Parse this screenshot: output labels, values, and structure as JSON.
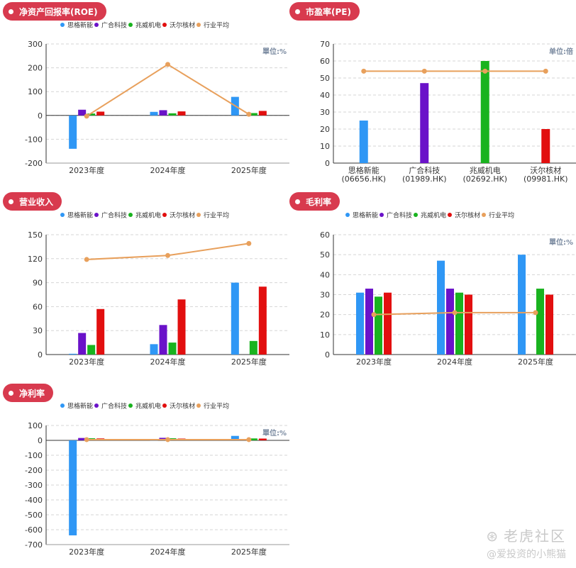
{
  "colors": {
    "series": [
      "#2f97f5",
      "#6a12c9",
      "#19b31f",
      "#e20f0f",
      "#e8a05c"
    ],
    "pill": "#d83a4e",
    "axis": "#333333",
    "grid": "#d5d5d5"
  },
  "legend_names": [
    "思格新能",
    "广合科技",
    "兆威机电",
    "沃尔核材",
    "行业平均"
  ],
  "years": [
    "2023年度",
    "2024年度",
    "2025年度"
  ],
  "watermark": {
    "brand": "老虎社区",
    "author": "@爱投资的小熊猫"
  },
  "chart_data": [
    {
      "title": "净资产回报率(ROE)",
      "type": "bar",
      "unit_label": "單位:%",
      "categories": [
        "2023年度",
        "2024年度",
        "2025年度"
      ],
      "ylim": [
        -200,
        300
      ],
      "yticks": [
        -200,
        -100,
        0,
        100,
        200,
        300
      ],
      "series": [
        {
          "name": "思格新能",
          "values": [
            -140,
            15,
            78
          ]
        },
        {
          "name": "广合科技",
          "values": [
            24,
            22,
            null
          ]
        },
        {
          "name": "兆威机电",
          "values": [
            8,
            9,
            10
          ]
        },
        {
          "name": "沃尔核材",
          "values": [
            16,
            17,
            19
          ]
        }
      ],
      "line": {
        "name": "行业平均",
        "values": [
          -3,
          214,
          5
        ]
      }
    },
    {
      "title": "市盈率(PE)",
      "type": "bar",
      "unit_label": "单位:倍",
      "categories": [
        "思格新能\n(06656.HK)",
        "广合科技\n(01989.HK)",
        "兆威机电\n(02692.HK)",
        "沃尔核材\n(09981.HK)"
      ],
      "ylim": [
        0,
        70
      ],
      "yticks": [
        0,
        10,
        20,
        30,
        40,
        50,
        60,
        70
      ],
      "values": [
        25,
        47,
        60,
        20
      ],
      "line": {
        "name": "行业平均",
        "values": [
          54,
          54,
          54,
          54
        ]
      }
    },
    {
      "title": "营业收入",
      "type": "bar",
      "categories": [
        "2023年度",
        "2024年度",
        "2025年度"
      ],
      "ylim": [
        0,
        150
      ],
      "yticks": [
        0,
        30,
        60,
        90,
        120,
        150
      ],
      "series": [
        {
          "name": "思格新能",
          "values": [
            1,
            13,
            90
          ]
        },
        {
          "name": "广合科技",
          "values": [
            27,
            37,
            null
          ]
        },
        {
          "name": "兆威机电",
          "values": [
            12,
            15,
            17
          ]
        },
        {
          "name": "沃尔核材",
          "values": [
            57,
            69,
            85
          ]
        }
      ],
      "line": {
        "name": "行业平均",
        "values": [
          119,
          124,
          139
        ]
      }
    },
    {
      "title": "毛利率",
      "type": "bar",
      "unit_label": "單位:%",
      "categories": [
        "2023年度",
        "2024年度",
        "2025年度"
      ],
      "ylim": [
        0,
        60
      ],
      "yticks": [
        0,
        10,
        20,
        30,
        40,
        50,
        60
      ],
      "series": [
        {
          "name": "思格新能",
          "values": [
            31,
            47,
            50
          ]
        },
        {
          "name": "广合科技",
          "values": [
            33,
            33,
            null
          ]
        },
        {
          "name": "兆威机电",
          "values": [
            29,
            31,
            33
          ]
        },
        {
          "name": "沃尔核材",
          "values": [
            31,
            30,
            30
          ]
        }
      ],
      "line": {
        "name": "行业平均",
        "values": [
          20,
          21,
          21
        ]
      }
    },
    {
      "title": "净利率",
      "type": "bar",
      "unit_label": "單位:%",
      "categories": [
        "2023年度",
        "2024年度",
        "2025年度"
      ],
      "ylim": [
        -700,
        100
      ],
      "yticks": [
        -700,
        -600,
        -500,
        -400,
        -300,
        -200,
        -100,
        0,
        100
      ],
      "series": [
        {
          "name": "思格新能",
          "values": [
            -638,
            4,
            30
          ]
        },
        {
          "name": "广合科技",
          "values": [
            16,
            17,
            null
          ]
        },
        {
          "name": "兆威机电",
          "values": [
            14,
            14,
            13
          ]
        },
        {
          "name": "沃尔核材",
          "values": [
            13,
            12,
            12
          ]
        }
      ],
      "line": {
        "name": "行业平均",
        "values": [
          5,
          5,
          5
        ]
      }
    }
  ]
}
